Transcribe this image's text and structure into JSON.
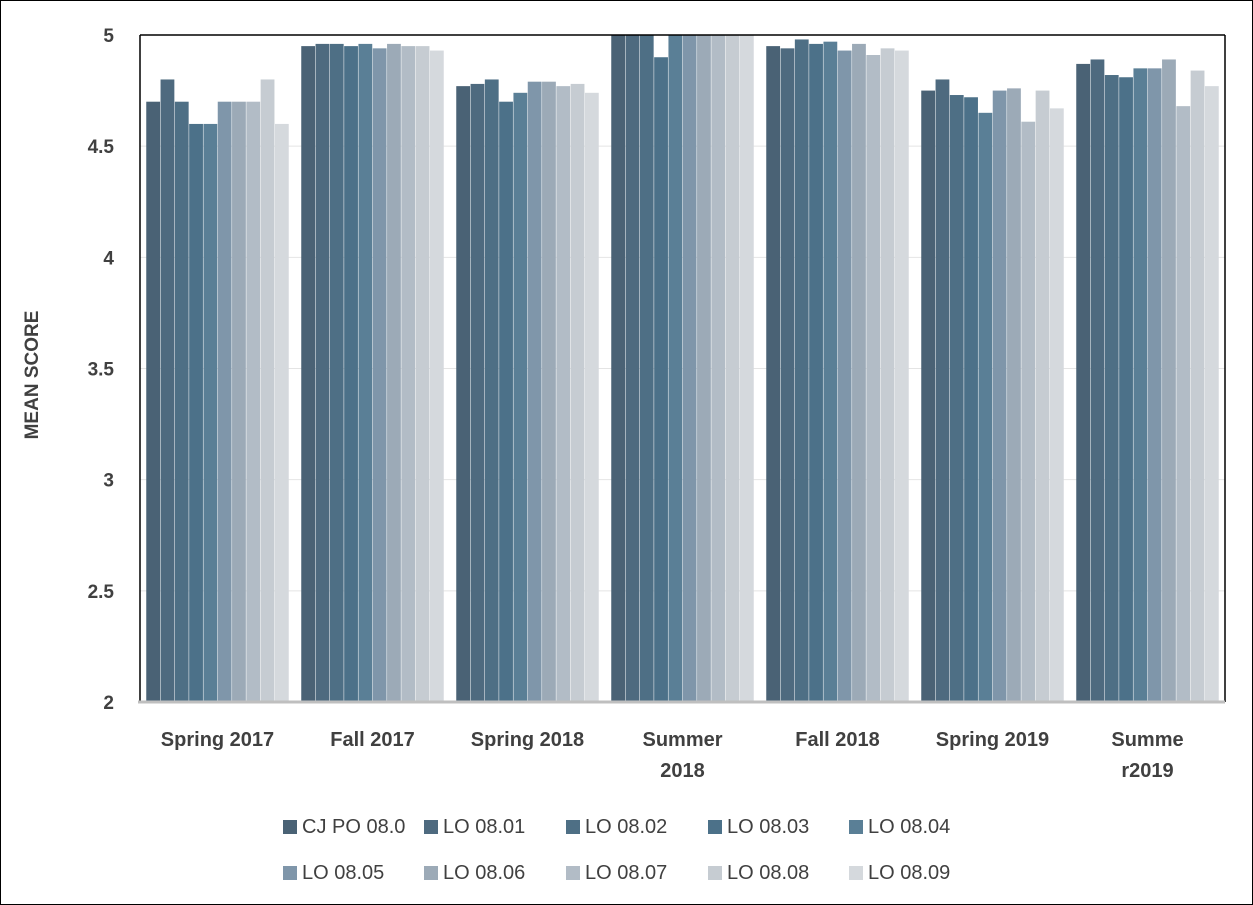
{
  "chart_data": {
    "type": "bar",
    "title": "",
    "xlabel": "",
    "ylabel": "MEAN SCORE",
    "ylim": [
      2,
      5
    ],
    "yticks": [
      2,
      2.5,
      3,
      3.5,
      4,
      4.5,
      5
    ],
    "ytick_labels": [
      "2",
      "2.5",
      "3",
      "3.5",
      "4",
      "4.5",
      "5"
    ],
    "grid": true,
    "legend_position": "bottom",
    "categories": [
      "Spring 2017",
      "Fall 2017",
      "Spring 2018",
      "Summer 2018",
      "Fall 2018",
      "Spring 2019",
      "Summer2019"
    ],
    "category_labels": [
      [
        "Spring 2017"
      ],
      [
        "Fall 2017"
      ],
      [
        "Spring 2018"
      ],
      [
        "Summer",
        "2018"
      ],
      [
        "Fall 2018"
      ],
      [
        "Spring 2019"
      ],
      [
        "Summe",
        "r2019"
      ]
    ],
    "series": [
      {
        "name": "CJ PO 08.0",
        "color": "#4a6275",
        "values": [
          4.7,
          4.95,
          4.77,
          5.0,
          4.95,
          4.75,
          4.87
        ]
      },
      {
        "name": "LO 08.01",
        "color": "#4e6a7f",
        "values": [
          4.8,
          4.96,
          4.78,
          5.0,
          4.94,
          4.8,
          4.89
        ]
      },
      {
        "name": "LO 08.02",
        "color": "#4e6f85",
        "values": [
          4.7,
          4.96,
          4.8,
          5.0,
          4.98,
          4.73,
          4.82
        ]
      },
      {
        "name": "LO 08.03",
        "color": "#4c7189",
        "values": [
          4.6,
          4.95,
          4.7,
          4.9,
          4.96,
          4.72,
          4.81
        ]
      },
      {
        "name": "LO 08.04",
        "color": "#5a7f96",
        "values": [
          4.6,
          4.96,
          4.74,
          5.0,
          4.97,
          4.65,
          4.85
        ]
      },
      {
        "name": "LO 08.05",
        "color": "#7f96aa",
        "values": [
          4.7,
          4.94,
          4.79,
          5.0,
          4.93,
          4.75,
          4.85
        ]
      },
      {
        "name": "LO 08.06",
        "color": "#9caab7",
        "values": [
          4.7,
          4.96,
          4.79,
          5.0,
          4.96,
          4.76,
          4.89
        ]
      },
      {
        "name": "LO 08.07",
        "color": "#b2bcc6",
        "values": [
          4.7,
          4.95,
          4.77,
          5.0,
          4.91,
          4.61,
          4.68
        ]
      },
      {
        "name": "LO 08.08",
        "color": "#c6ccd2",
        "values": [
          4.8,
          4.95,
          4.78,
          5.0,
          4.94,
          4.75,
          4.84
        ]
      },
      {
        "name": "LO 08.09",
        "color": "#d5d9dd",
        "values": [
          4.6,
          4.93,
          4.74,
          5.0,
          4.93,
          4.67,
          4.77
        ]
      }
    ]
  }
}
